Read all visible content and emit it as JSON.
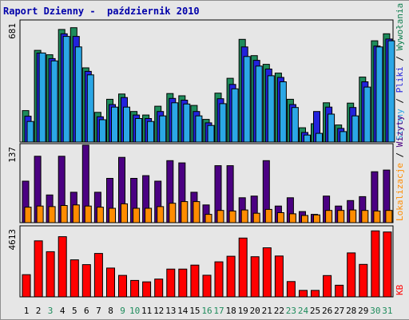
{
  "title": "Raport Dzienny -  październik 2010",
  "chart_data": [
    {
      "type": "bar",
      "ymax_label": "681",
      "legend": {
        "parts": [
          {
            "text": "Wywołania",
            "color": "#0f7f4f"
          },
          {
            "text": "Pliki",
            "color": "#2222dd"
          },
          {
            "text": "Strony",
            "color": "#2ba7e6"
          }
        ],
        "separator": " / "
      },
      "ylim": [
        0,
        681
      ],
      "series": [
        {
          "color": "#1e8c5c",
          "values": [
            180,
            525,
            500,
            645,
            655,
            425,
            170,
            245,
            275,
            175,
            155,
            205,
            278,
            265,
            210,
            130,
            280,
            365,
            588,
            495,
            445,
            395,
            245,
            82,
            105,
            225,
            98,
            223,
            372,
            580,
            620
          ]
        },
        {
          "color": "#2222dd",
          "values": [
            148,
            510,
            478,
            620,
            605,
            405,
            145,
            215,
            255,
            155,
            135,
            175,
            250,
            240,
            175,
            110,
            248,
            330,
            545,
            468,
            418,
            370,
            215,
            55,
            175,
            200,
            78,
            198,
            345,
            550,
            590
          ]
        },
        {
          "color": "#2ba7e6",
          "values": [
            118,
            510,
            465,
            605,
            545,
            385,
            128,
            200,
            200,
            135,
            118,
            150,
            225,
            218,
            150,
            95,
            220,
            305,
            490,
            435,
            380,
            345,
            198,
            40,
            50,
            160,
            60,
            150,
            315,
            545,
            580
          ]
        }
      ]
    },
    {
      "type": "bar",
      "ymax_label": "137",
      "legend": {
        "parts": [
          {
            "text": "Wizyty",
            "color": "#4b0082"
          },
          {
            "text": "Lokalizacje",
            "color": "#ff8c00"
          }
        ],
        "separator": " / "
      },
      "ylim": [
        0,
        137
      ],
      "series": [
        {
          "color": "#4b0082",
          "values": [
            75,
            120,
            50,
            120,
            55,
            140,
            55,
            80,
            118,
            80,
            85,
            75,
            112,
            108,
            55,
            32,
            103,
            103,
            45,
            48,
            112,
            30,
            45,
            20,
            15,
            48,
            30,
            40,
            47,
            92,
            95
          ]
        },
        {
          "color": "#ff8c00",
          "values": [
            28,
            30,
            29,
            31,
            32,
            30,
            28,
            26,
            34,
            26,
            26,
            29,
            35,
            38,
            38,
            15,
            22,
            21,
            23,
            17,
            24,
            18,
            16,
            13,
            14,
            22,
            22,
            23,
            22,
            21,
            22
          ]
        }
      ]
    },
    {
      "type": "bar",
      "ymax_label": "4613",
      "legend": {
        "parts": [
          {
            "text": "KB",
            "color": "#ff0000"
          }
        ],
        "separator": ""
      },
      "ylim": [
        0,
        4613
      ],
      "series": [
        {
          "color": "#ff0000",
          "values": [
            1510,
            3810,
            3070,
            4090,
            2520,
            2190,
            2950,
            1960,
            1460,
            1120,
            1020,
            1210,
            1890,
            1890,
            2160,
            1470,
            2380,
            2760,
            4000,
            2730,
            3340,
            2780,
            1040,
            440,
            440,
            1450,
            790,
            2990,
            2210,
            4490,
            4410
          ]
        }
      ]
    }
  ],
  "x_labels": [
    {
      "text": "1",
      "color": "#000000"
    },
    {
      "text": "2",
      "color": "#000000"
    },
    {
      "text": "3",
      "color": "#1e8c5c"
    },
    {
      "text": "4",
      "color": "#000000"
    },
    {
      "text": "5",
      "color": "#000000"
    },
    {
      "text": "6",
      "color": "#000000"
    },
    {
      "text": "7",
      "color": "#000000"
    },
    {
      "text": "8",
      "color": "#000000"
    },
    {
      "text": "9",
      "color": "#1e8c5c"
    },
    {
      "text": "10",
      "color": "#1e8c5c"
    },
    {
      "text": "11",
      "color": "#000000"
    },
    {
      "text": "12",
      "color": "#000000"
    },
    {
      "text": "13",
      "color": "#000000"
    },
    {
      "text": "14",
      "color": "#000000"
    },
    {
      "text": "15",
      "color": "#000000"
    },
    {
      "text": "16",
      "color": "#1e8c5c"
    },
    {
      "text": "17",
      "color": "#1e8c5c"
    },
    {
      "text": "18",
      "color": "#000000"
    },
    {
      "text": "19",
      "color": "#000000"
    },
    {
      "text": "20",
      "color": "#000000"
    },
    {
      "text": "21",
      "color": "#000000"
    },
    {
      "text": "22",
      "color": "#000000"
    },
    {
      "text": "23",
      "color": "#1e8c5c"
    },
    {
      "text": "24",
      "color": "#1e8c5c"
    },
    {
      "text": "25",
      "color": "#000000"
    },
    {
      "text": "26",
      "color": "#000000"
    },
    {
      "text": "27",
      "color": "#000000"
    },
    {
      "text": "28",
      "color": "#000000"
    },
    {
      "text": "29",
      "color": "#000000"
    },
    {
      "text": "30",
      "color": "#1e8c5c"
    },
    {
      "text": "31",
      "color": "#1e8c5c"
    }
  ]
}
